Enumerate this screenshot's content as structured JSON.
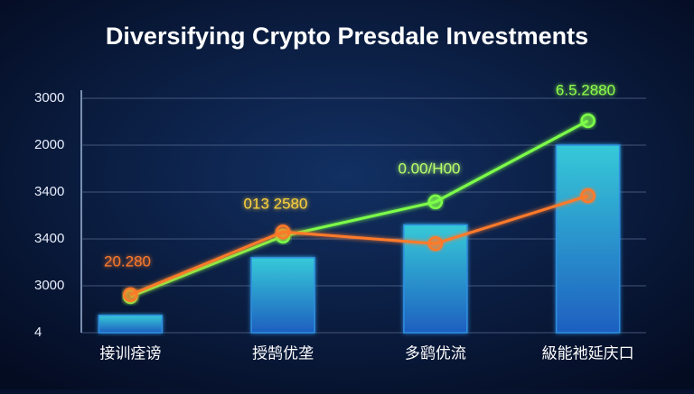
{
  "chart_data": {
    "type": "combo",
    "title": "Diversifying Crypto Presdale Investments",
    "categories": [
      "接训痊谤",
      "授鹄优垄",
      "多鹞优流",
      "級能祂延庆口"
    ],
    "series": [
      {
        "type": "bar",
        "color": "#2f8fe0",
        "values": [
          0.37,
          1.6,
          2.3,
          4.0
        ]
      },
      {
        "type": "line",
        "color": "#7dff4a",
        "values": [
          0.77,
          2.06,
          2.79,
          4.52
        ]
      },
      {
        "type": "line",
        "color": "#ff7a2a",
        "values": [
          0.81,
          2.15,
          1.9,
          2.92
        ]
      }
    ],
    "annotations": [
      "20.280",
      "013 2580",
      "0.00/H00",
      "6.5.2880"
    ],
    "ylim": [
      0,
      5
    ],
    "yticks": [
      {
        "value": 0,
        "label": "4"
      },
      {
        "value": 1,
        "label": "3000"
      },
      {
        "value": 2,
        "label": "3400"
      },
      {
        "value": 3,
        "label": "3400"
      },
      {
        "value": 4,
        "label": "2000"
      },
      {
        "value": 5,
        "label": "3000"
      }
    ],
    "grid": true
  }
}
